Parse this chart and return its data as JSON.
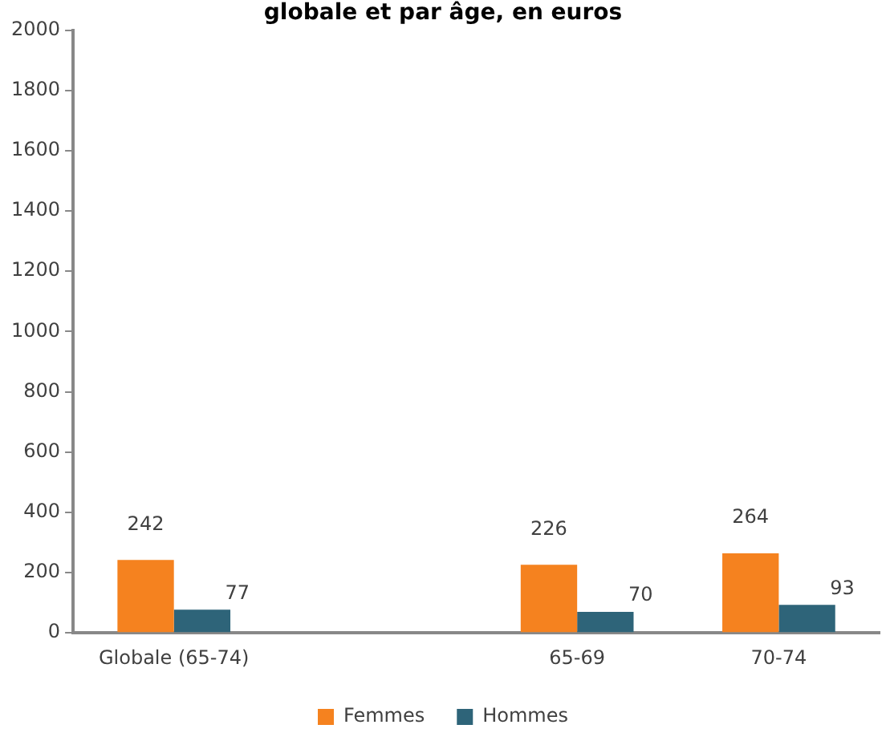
{
  "chart_data": {
    "type": "bar",
    "title": "globale et par âge, en euros",
    "categories": [
      "Globale (65-74)",
      null,
      "65-69",
      "70-74"
    ],
    "series": [
      {
        "name": "Femmes",
        "color": "#f5821f",
        "values": [
          242,
          null,
          226,
          264
        ]
      },
      {
        "name": "Hommes",
        "color": "#2e6479",
        "values": [
          77,
          null,
          70,
          93
        ]
      }
    ],
    "ylim": [
      0,
      2000
    ],
    "yticks": [
      0,
      200,
      400,
      600,
      800,
      1000,
      1200,
      1400,
      1600,
      1800,
      2000
    ],
    "grid": false,
    "legend": "bottom",
    "data_labels": true
  }
}
